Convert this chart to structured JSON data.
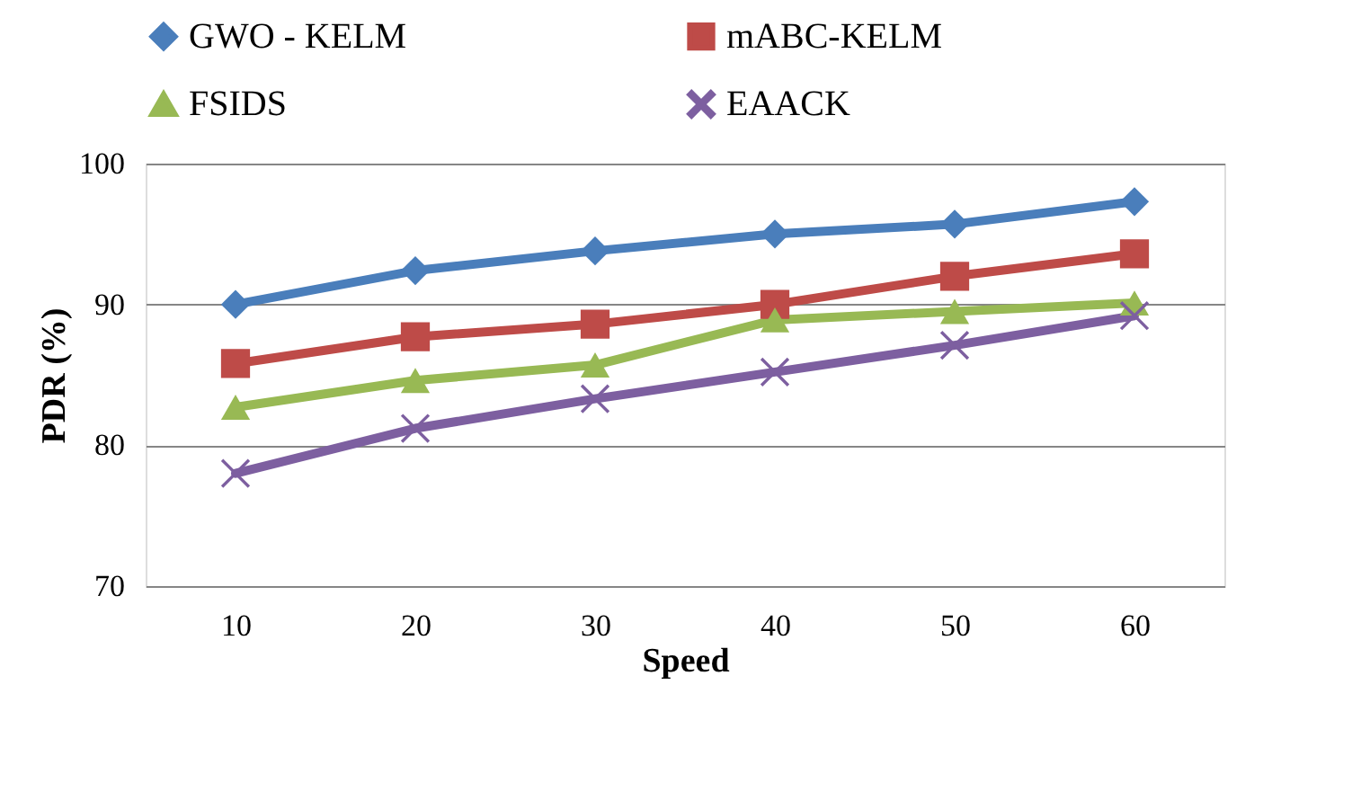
{
  "chart_data": {
    "type": "line",
    "xlabel": "Speed",
    "ylabel": "PDR (%)",
    "categories": [
      "10",
      "20",
      "30",
      "40",
      "50",
      "60"
    ],
    "series": [
      {
        "name": "GWO - KELM",
        "color": "#4a7ebb",
        "marker": "diamond",
        "values": [
          90.0,
          92.4,
          93.8,
          95.0,
          95.7,
          97.3
        ]
      },
      {
        "name": "mABC-KELM",
        "color": "#be4b48",
        "marker": "square",
        "values": [
          85.8,
          87.7,
          88.6,
          90.0,
          92.0,
          93.6
        ]
      },
      {
        "name": "FSIDS",
        "color": "#98b954",
        "marker": "triangle",
        "values": [
          82.7,
          84.6,
          85.7,
          88.9,
          89.5,
          90.1
        ]
      },
      {
        "name": "EAACK",
        "color": "#7d5fa0",
        "marker": "cross",
        "values": [
          78.0,
          81.2,
          83.3,
          85.2,
          87.1,
          89.2
        ]
      }
    ],
    "ylim": [
      70,
      100
    ],
    "yticks": [
      70,
      80,
      90,
      100
    ],
    "grid": "y",
    "legend": "top",
    "line_style": "solid"
  }
}
